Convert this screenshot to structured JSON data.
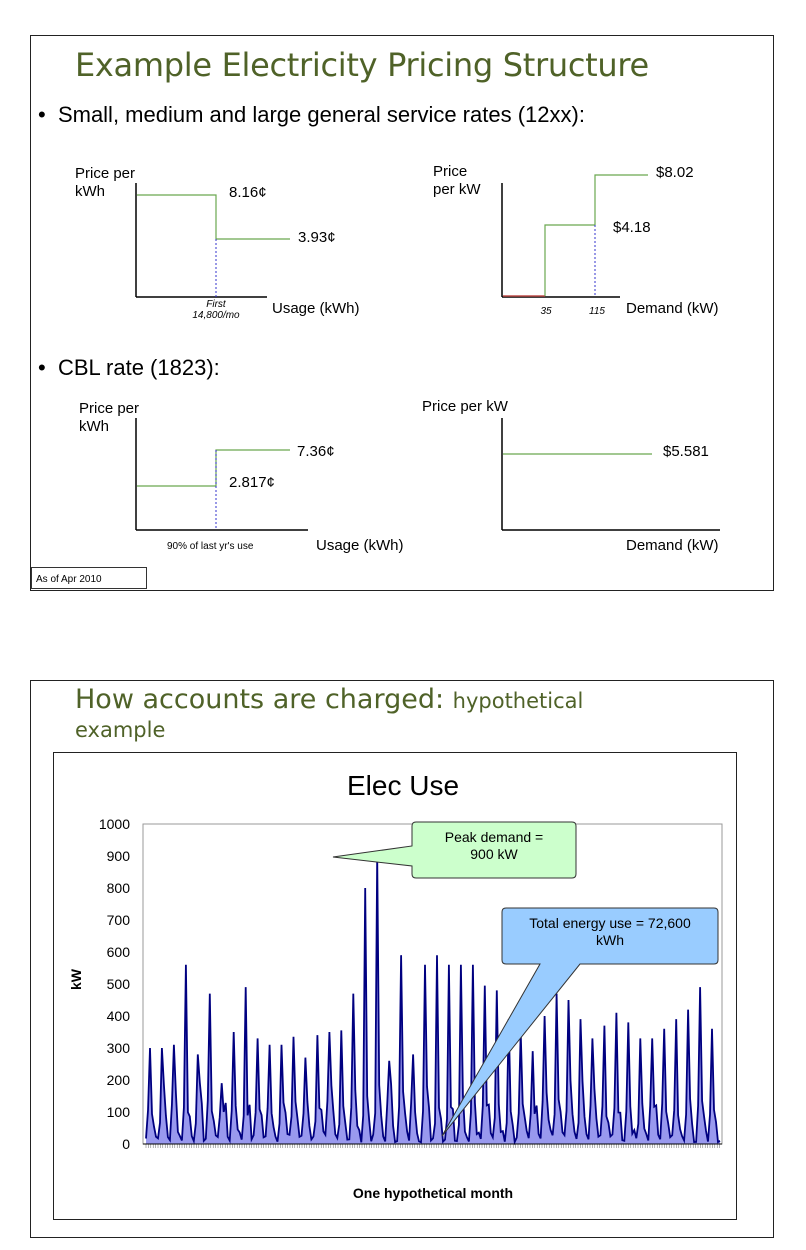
{
  "slide1": {
    "title": "Example Electricity Pricing Structure",
    "bullet1": "Small, medium and large general service rates (12xx):",
    "bullet2": "CBL rate (1823):",
    "stamp": "As of Apr 2010"
  },
  "slide2": {
    "title": "How accounts are charged: ",
    "title_small": "hypothetical",
    "title_line2": "example"
  },
  "chart_data": [
    {
      "type": "line",
      "title": "",
      "ylabel": "Price per\nkWh",
      "xlabel": "Usage (kWh)",
      "tiers": [
        {
          "label": "8.16¢",
          "value": 8.16
        },
        {
          "label": "3.93¢",
          "value": 3.93
        }
      ],
      "breakpoint_label": "First\n14,800/mo"
    },
    {
      "type": "line",
      "title": "",
      "ylabel": "Price\nper kW",
      "xlabel": "Demand (kW)",
      "tiers": [
        {
          "label": "",
          "value": 0
        },
        {
          "label": "$4.18",
          "value": 4.18
        },
        {
          "label": "$8.02",
          "value": 8.02
        }
      ],
      "breakpoints": [
        "35",
        "115"
      ]
    },
    {
      "type": "line",
      "title": "",
      "ylabel": "Price per\nkWh",
      "xlabel": "Usage (kWh)",
      "tiers": [
        {
          "label": "2.817¢",
          "value": 2.817
        },
        {
          "label": "7.36¢",
          "value": 7.36
        }
      ],
      "breakpoint_label": "90% of last yr's use"
    },
    {
      "type": "line",
      "title": "",
      "ylabel": "Price per kW",
      "xlabel": "Demand (kW)",
      "tiers": [
        {
          "label": "$5.581",
          "value": 5.581
        }
      ]
    },
    {
      "type": "area",
      "title": "Elec Use",
      "xlabel": "One hypothetical month",
      "ylabel": "kW",
      "ylim": [
        0,
        1000
      ],
      "yticks": [
        "1000",
        "900",
        "800",
        "700",
        "600",
        "500",
        "400",
        "300",
        "200",
        "100",
        "0"
      ],
      "grid": false,
      "colors": {
        "line": "#000080",
        "fill": "#9999ee"
      },
      "annotations": [
        {
          "text": "Peak demand =\n900 kW",
          "color": "#ccffcc"
        },
        {
          "text": "Total energy use = 72,600\nkWh",
          "color": "#99ccff"
        }
      ],
      "peak_value": 900,
      "daily_peaks": [
        300,
        300,
        310,
        560,
        280,
        470,
        190,
        350,
        490,
        330,
        310,
        310,
        335,
        270,
        340,
        350,
        355,
        470,
        800,
        900,
        260,
        590,
        280,
        560,
        590,
        560,
        560,
        560,
        495,
        480,
        390,
        350,
        290,
        400,
        470,
        450,
        390,
        330,
        370,
        410,
        380,
        330,
        330,
        360,
        390,
        420,
        490,
        360
      ]
    }
  ]
}
